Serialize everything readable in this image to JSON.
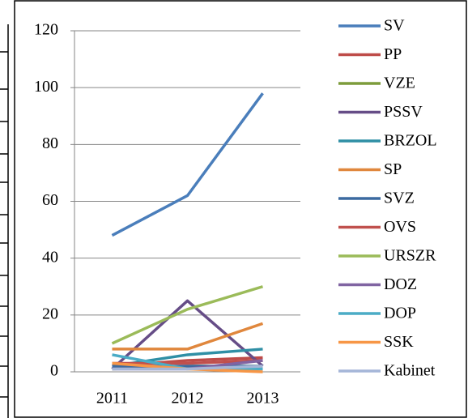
{
  "chart_data": {
    "type": "line",
    "categories": [
      "2011",
      "2012",
      "2013"
    ],
    "series": [
      {
        "name": "SV",
        "color": "#4a7ebb",
        "values": [
          48,
          62,
          98
        ]
      },
      {
        "name": "PP",
        "color": "#be4b48",
        "values": [
          2,
          4,
          5
        ]
      },
      {
        "name": "VZE",
        "color": "#7d9c3b",
        "values": [
          1,
          2,
          2
        ]
      },
      {
        "name": "PSSV",
        "color": "#664d87",
        "values": [
          1,
          25,
          2
        ]
      },
      {
        "name": "BRZOL",
        "color": "#2f8fa5",
        "values": [
          2,
          6,
          8
        ]
      },
      {
        "name": "SP",
        "color": "#e0873d",
        "values": [
          8,
          8,
          17
        ]
      },
      {
        "name": "SVZ",
        "color": "#3c6aa0",
        "values": [
          2,
          2,
          2
        ]
      },
      {
        "name": "OVS",
        "color": "#c0504d",
        "values": [
          3,
          3,
          4
        ]
      },
      {
        "name": "URSZR",
        "color": "#9bbb59",
        "values": [
          10,
          22,
          30
        ]
      },
      {
        "name": "DOZ",
        "color": "#8064a2",
        "values": [
          1,
          1,
          4
        ]
      },
      {
        "name": "DOP",
        "color": "#4bacc6",
        "values": [
          6,
          1,
          1
        ]
      },
      {
        "name": "SSK",
        "color": "#f79646",
        "values": [
          3,
          1,
          0
        ]
      },
      {
        "name": "Kabinet",
        "color": "#a5b6d8",
        "values": [
          1,
          1,
          2
        ]
      }
    ],
    "ylim": [
      0,
      120
    ],
    "yticks": [
      0,
      20,
      40,
      60,
      80,
      100,
      120
    ],
    "grid": true,
    "legend": "right"
  }
}
